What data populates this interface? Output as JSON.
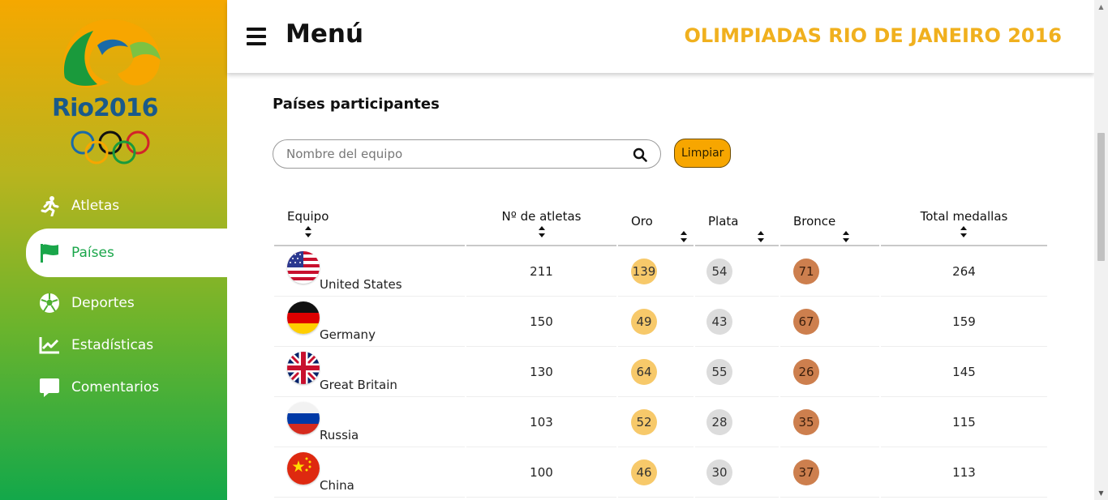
{
  "sidebar": {
    "logo_text": "Rio2016",
    "items": [
      {
        "label": "Atletas",
        "icon": "running-icon",
        "active": false
      },
      {
        "label": "Países",
        "icon": "flag-icon",
        "active": true
      },
      {
        "label": "Deportes",
        "icon": "soccer-ball-icon",
        "active": false
      },
      {
        "label": "Estadísticas",
        "icon": "chart-line-icon",
        "active": false
      },
      {
        "label": "Comentarios",
        "icon": "comment-icon",
        "active": false
      }
    ]
  },
  "header": {
    "menu_label": "Menú",
    "brand": "OLIMPIADAS RIO DE JANEIRO 2016"
  },
  "main": {
    "section_title": "Países participantes",
    "search": {
      "placeholder": "Nombre del equipo",
      "value": ""
    },
    "clear_label": "Limpiar",
    "columns": [
      "Equipo",
      "Nº de atletas",
      "Oro",
      "Plata",
      "Bronce",
      "Total medallas"
    ],
    "rows": [
      {
        "team": "United States",
        "flag": "us-flag-icon",
        "athletes": "211",
        "gold": "139",
        "silver": "54",
        "bronze": "71",
        "total": "264"
      },
      {
        "team": "Germany",
        "flag": "germany-flag-icon",
        "athletes": "150",
        "gold": "49",
        "silver": "43",
        "bronze": "67",
        "total": "159"
      },
      {
        "team": "Great Britain",
        "flag": "uk-flag-icon",
        "athletes": "130",
        "gold": "64",
        "silver": "55",
        "bronze": "26",
        "total": "145"
      },
      {
        "team": "Russia",
        "flag": "russia-flag-icon",
        "athletes": "103",
        "gold": "52",
        "silver": "28",
        "bronze": "35",
        "total": "115"
      },
      {
        "team": "China",
        "flag": "china-flag-icon",
        "athletes": "100",
        "gold": "46",
        "silver": "30",
        "bronze": "37",
        "total": "113"
      }
    ]
  },
  "colors": {
    "accent": "#f0b01e",
    "active_green": "#1aa64a",
    "gold": "#f7c96a",
    "silver": "#dcdcdc",
    "bronze": "#cd7f4e"
  }
}
